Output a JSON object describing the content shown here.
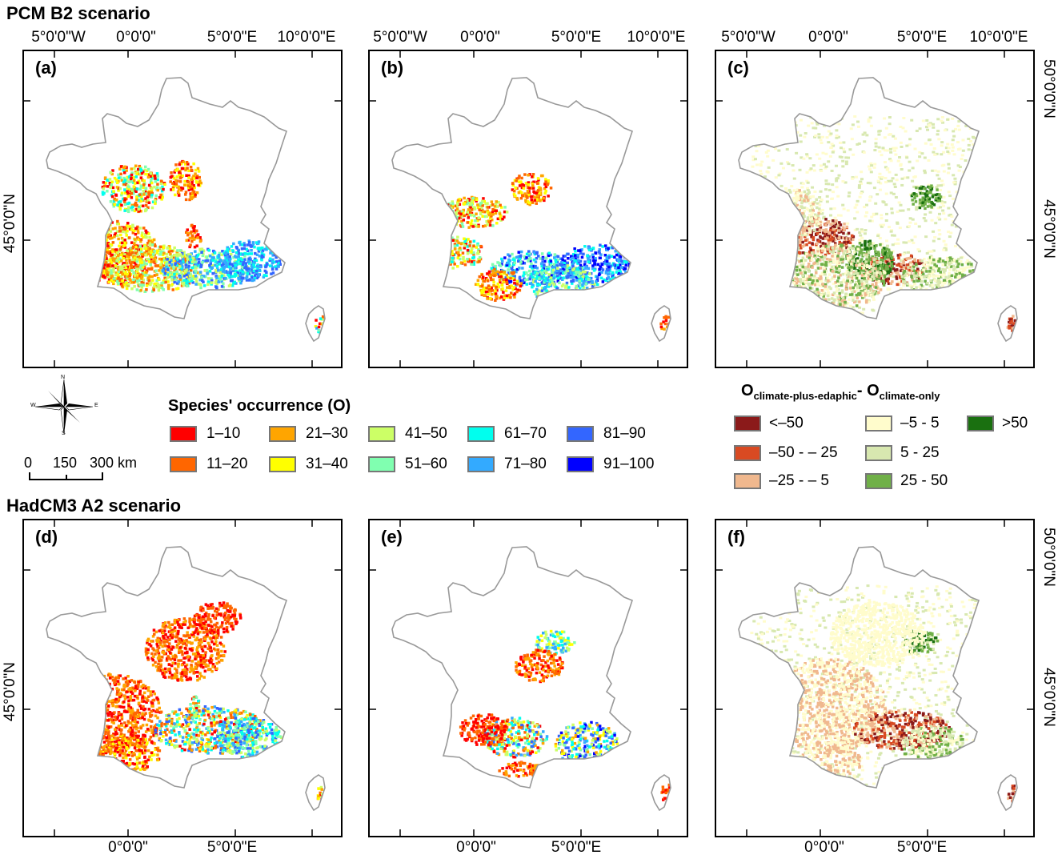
{
  "scenarios": {
    "top": "PCM B2 scenario",
    "bottom": "HadCM3 A2 scenario"
  },
  "panels": [
    {
      "id": "a",
      "label": "(a)",
      "type": "occurrence"
    },
    {
      "id": "b",
      "label": "(b)",
      "type": "occurrence"
    },
    {
      "id": "c",
      "label": "(c)",
      "type": "difference"
    },
    {
      "id": "d",
      "label": "(d)",
      "type": "occurrence"
    },
    {
      "id": "e",
      "label": "(e)",
      "type": "occurrence"
    },
    {
      "id": "f",
      "label": "(f)",
      "type": "difference"
    }
  ],
  "axes": {
    "lon_labels": [
      "5°0'0\"W",
      "0°0'0\"",
      "5°0'0\"E",
      "10°0'0\"E"
    ],
    "lon_bottom_labels": [
      "0°0'0\"",
      "5°0'0\"E"
    ],
    "lat_labels": [
      "50°0'0\"N",
      "45°0'0\"N"
    ]
  },
  "occurrence_legend": {
    "title": "Species' occurrence (O)",
    "items": [
      {
        "label": "1–10",
        "color": "#ff0000"
      },
      {
        "label": "11–20",
        "color": "#ff6600"
      },
      {
        "label": "21–30",
        "color": "#ffa500"
      },
      {
        "label": "31–40",
        "color": "#ffff00"
      },
      {
        "label": "41–50",
        "color": "#ccff66"
      },
      {
        "label": "51–60",
        "color": "#80ffb0"
      },
      {
        "label": "61–70",
        "color": "#00ffee"
      },
      {
        "label": "71–80",
        "color": "#33aaff"
      },
      {
        "label": "81–90",
        "color": "#3366ff"
      },
      {
        "label": "91–100",
        "color": "#0000ff"
      }
    ]
  },
  "difference_legend": {
    "title_main1": "O",
    "title_sub1": "climate-plus-edaphic",
    "title_sep": "- O",
    "title_sub2": "climate-only",
    "items": [
      {
        "label": "<–50",
        "color": "#8b1a1a"
      },
      {
        "label": "–50 - – 25",
        "color": "#d94a22"
      },
      {
        "label": "–25 - – 5",
        "color": "#f0b88e"
      },
      {
        "label": "–5 - 5",
        "color": "#fffccc"
      },
      {
        "label": "5 - 25",
        "color": "#d8e8b0"
      },
      {
        "label": "25 - 50",
        "color": "#70b048"
      },
      {
        "label": ">50",
        "color": "#1a7010"
      }
    ]
  },
  "scale_bar": {
    "labels": [
      "0",
      "150",
      "300 km"
    ]
  },
  "compass": {
    "n": "N",
    "s": "S",
    "e": "E",
    "w": "W"
  }
}
